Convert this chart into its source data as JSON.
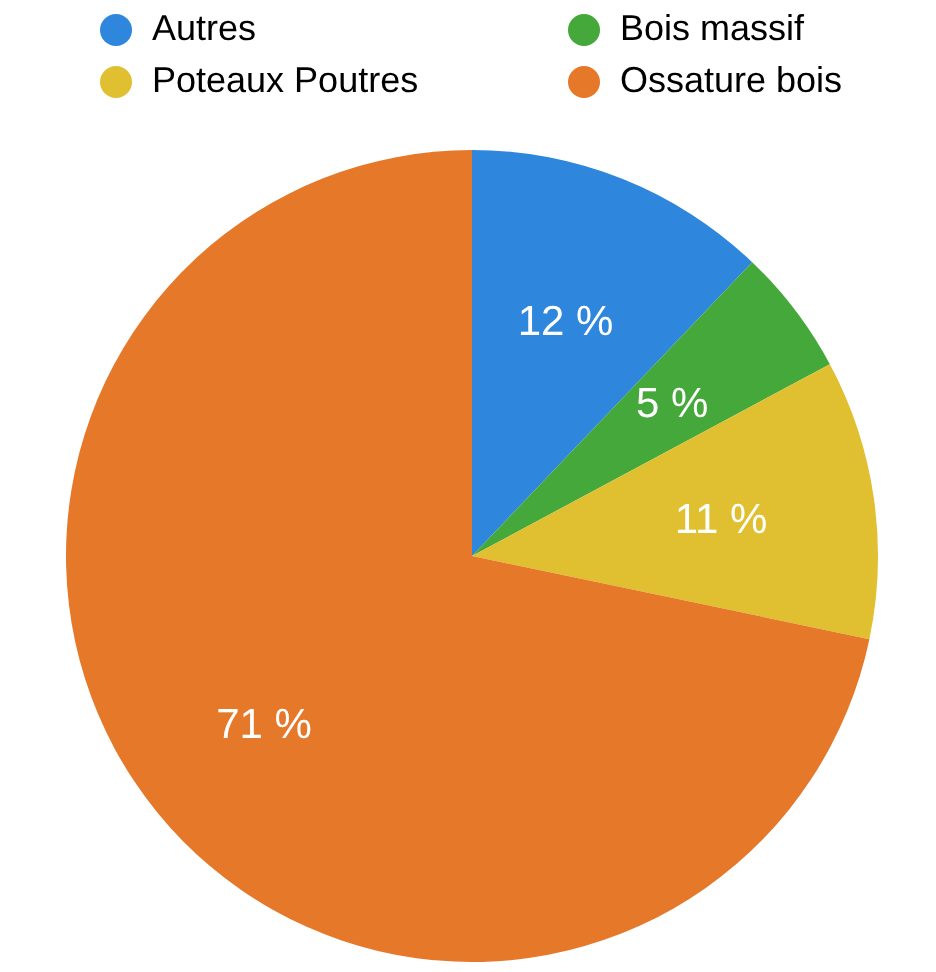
{
  "chart_data": {
    "type": "pie",
    "categories": [
      "Autres",
      "Bois massif",
      "Poteaux Poutres",
      "Ossature bois"
    ],
    "values": [
      12,
      5,
      11,
      71
    ],
    "colors": [
      "#2f86dd",
      "#44a83a",
      "#e0c030",
      "#e6782a"
    ],
    "value_labels": [
      "12 %",
      "5 %",
      "11 %",
      "71 %"
    ],
    "legend": "top"
  }
}
